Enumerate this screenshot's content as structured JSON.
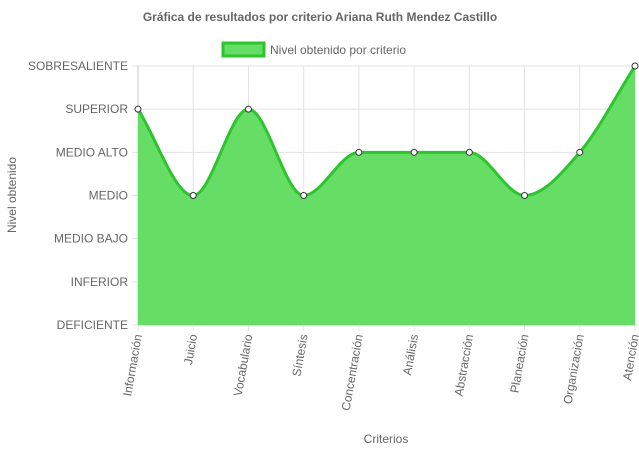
{
  "chart_data": {
    "type": "area",
    "title": "Gráfica de resultados por criterio Ariana Ruth Mendez Castillo",
    "xlabel": "Criterios",
    "ylabel": "Nivel obtenido",
    "categories": [
      "Información",
      "Juicio",
      "Vocabulario",
      "Síntesis",
      "Concentración",
      "Análisis",
      "Abstracción",
      "Planeación",
      "Organización",
      "Atención"
    ],
    "y_levels": [
      "DEFICIENTE",
      "INFERIOR",
      "MEDIO BAJO",
      "MEDIO",
      "MEDIO ALTO",
      "SUPERIOR",
      "SOBRESALIENTE"
    ],
    "ylim": [
      "DEFICIENTE",
      "SOBRESALIENTE"
    ],
    "series": [
      {
        "name": "Nivel obtenido por criterio",
        "values": [
          "SUPERIOR",
          "MEDIO",
          "SUPERIOR",
          "MEDIO",
          "MEDIO ALTO",
          "MEDIO ALTO",
          "MEDIO ALTO",
          "MEDIO",
          "MEDIO ALTO",
          "SOBRESALIENTE"
        ],
        "fill_color": "#66de66",
        "line_color": "#2ec42e"
      }
    ],
    "legend_position": "top",
    "grid": true
  }
}
